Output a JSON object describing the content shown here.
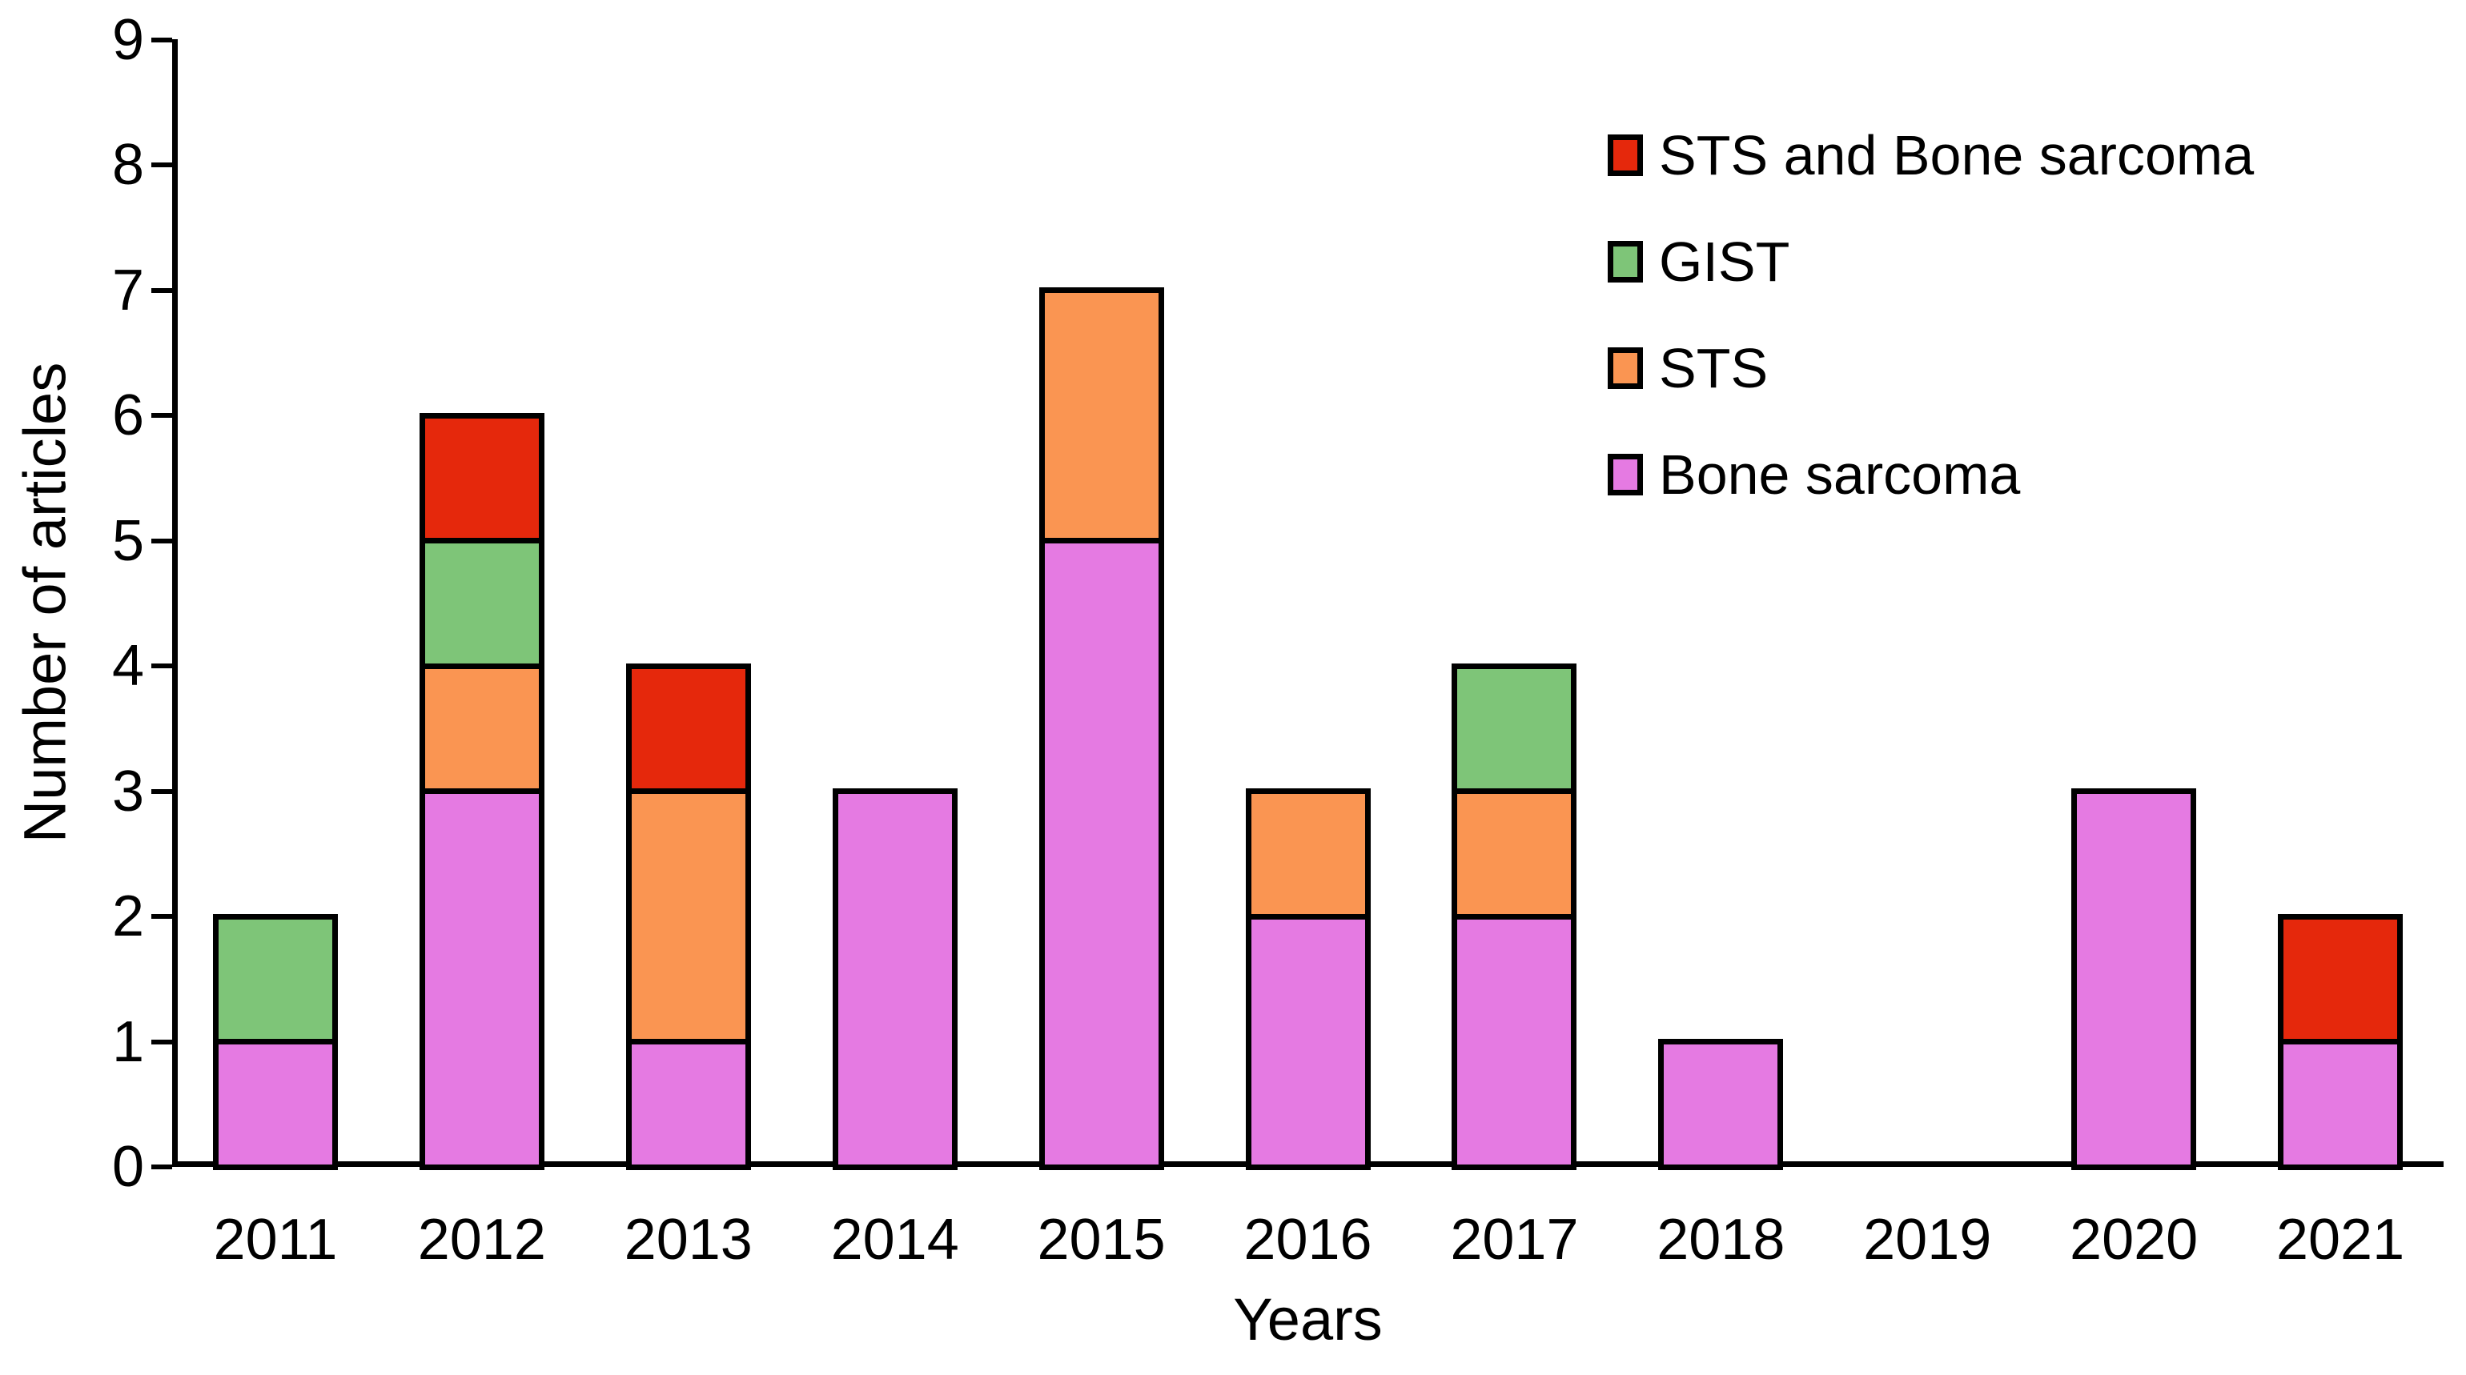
{
  "chart_data": {
    "type": "bar",
    "stacked": true,
    "title": "",
    "xlabel": "Years",
    "ylabel": "Number of articles",
    "ylim": [
      0,
      9
    ],
    "ytick_step": 1,
    "grid": false,
    "legend_position": "top-right",
    "bar_outline_color": "#000000",
    "categories": [
      "2011",
      "2012",
      "2013",
      "2014",
      "2015",
      "2016",
      "2017",
      "2018",
      "2019",
      "2020",
      "2021"
    ],
    "series": [
      {
        "name": "Bone sarcoma",
        "color": "#E57AE2",
        "values": [
          1,
          3,
          1,
          3,
          5,
          2,
          2,
          1,
          0,
          3,
          1
        ]
      },
      {
        "name": "STS",
        "color": "#FA9552",
        "values": [
          0,
          1,
          2,
          0,
          2,
          1,
          1,
          0,
          0,
          0,
          0
        ]
      },
      {
        "name": "GIST",
        "color": "#7EC578",
        "values": [
          1,
          1,
          0,
          0,
          0,
          0,
          1,
          0,
          0,
          0,
          0
        ]
      },
      {
        "name": "STS and Bone sarcoma",
        "color": "#E5280C",
        "values": [
          0,
          1,
          1,
          0,
          0,
          0,
          0,
          0,
          0,
          0,
          1
        ]
      }
    ],
    "totals": [
      2,
      6,
      4,
      3,
      7,
      3,
      4,
      1,
      0,
      3,
      2
    ],
    "legend_order": [
      "STS and Bone sarcoma",
      "GIST",
      "STS",
      "Bone sarcoma"
    ]
  }
}
